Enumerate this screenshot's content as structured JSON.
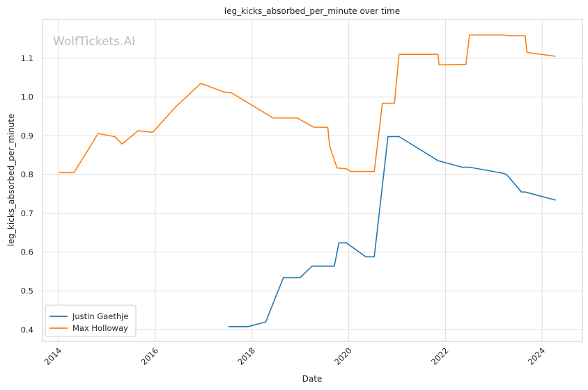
{
  "chart_data": {
    "type": "line",
    "title": "leg_kicks_absorbed_per_minute over time",
    "xlabel": "Date",
    "ylabel": "leg_kicks_absorbed_per_minute",
    "watermark": "WolfTickets.AI",
    "xlim": [
      "2013-09-01",
      "2024-11-01"
    ],
    "ylim": [
      0.37,
      1.2
    ],
    "x_ticks": [
      "2014",
      "2016",
      "2018",
      "2020",
      "2022",
      "2024"
    ],
    "y_ticks": [
      "0.4",
      "0.5",
      "0.6",
      "0.7",
      "0.8",
      "0.9",
      "1.0",
      "1.1"
    ],
    "grid": true,
    "legend_position": "lower-left",
    "series": [
      {
        "name": "Justin Gaethje",
        "color": "#1f77b4",
        "points": [
          [
            "2017-07-07",
            0.408
          ],
          [
            "2017-12-02",
            0.408
          ],
          [
            "2018-04-14",
            0.42
          ],
          [
            "2018-08-25",
            0.534
          ],
          [
            "2018-12-29",
            0.534
          ],
          [
            "2019-03-30",
            0.564
          ],
          [
            "2019-09-14",
            0.564
          ],
          [
            "2019-10-19",
            0.624
          ],
          [
            "2019-12-14",
            0.624
          ],
          [
            "2020-05-09",
            0.588
          ],
          [
            "2020-07-12",
            0.588
          ],
          [
            "2020-10-24",
            0.898
          ],
          [
            "2021-01-16",
            0.898
          ],
          [
            "2021-11-06",
            0.836
          ],
          [
            "2022-05-07",
            0.819
          ],
          [
            "2022-07-02",
            0.819
          ],
          [
            "2023-03-18",
            0.803
          ],
          [
            "2023-04-08",
            0.8
          ],
          [
            "2023-07-29",
            0.755
          ],
          [
            "2023-08-26",
            0.755
          ],
          [
            "2024-04-13",
            0.734
          ]
        ]
      },
      {
        "name": "Max Holloway",
        "color": "#ff7f0e",
        "points": [
          [
            "2014-01-04",
            0.805
          ],
          [
            "2014-04-26",
            0.805
          ],
          [
            "2014-08-23",
            0.87
          ],
          [
            "2014-10-25",
            0.906
          ],
          [
            "2015-02-28",
            0.898
          ],
          [
            "2015-04-25",
            0.879
          ],
          [
            "2015-08-23",
            0.913
          ],
          [
            "2015-12-12",
            0.909
          ],
          [
            "2016-06-04",
            0.975
          ],
          [
            "2016-12-10",
            1.035
          ],
          [
            "2017-06-03",
            1.013
          ],
          [
            "2017-07-29",
            1.011
          ],
          [
            "2018-06-09",
            0.946
          ],
          [
            "2018-12-08",
            0.946
          ],
          [
            "2019-04-13",
            0.922
          ],
          [
            "2019-07-27",
            0.922
          ],
          [
            "2019-08-10",
            0.873
          ],
          [
            "2019-10-05",
            0.817
          ],
          [
            "2019-12-14",
            0.815
          ],
          [
            "2020-01-18",
            0.808
          ],
          [
            "2020-07-12",
            0.808
          ],
          [
            "2020-09-12",
            0.984
          ],
          [
            "2020-12-12",
            0.984
          ],
          [
            "2021-01-16",
            1.11
          ],
          [
            "2021-11-06",
            1.11
          ],
          [
            "2021-11-13",
            1.083
          ],
          [
            "2022-06-04",
            1.084
          ],
          [
            "2022-07-02",
            1.16
          ],
          [
            "2023-03-18",
            1.16
          ],
          [
            "2023-04-15",
            1.158
          ],
          [
            "2023-08-26",
            1.158
          ],
          [
            "2023-09-09",
            1.115
          ],
          [
            "2024-04-13",
            1.105
          ]
        ]
      }
    ]
  }
}
